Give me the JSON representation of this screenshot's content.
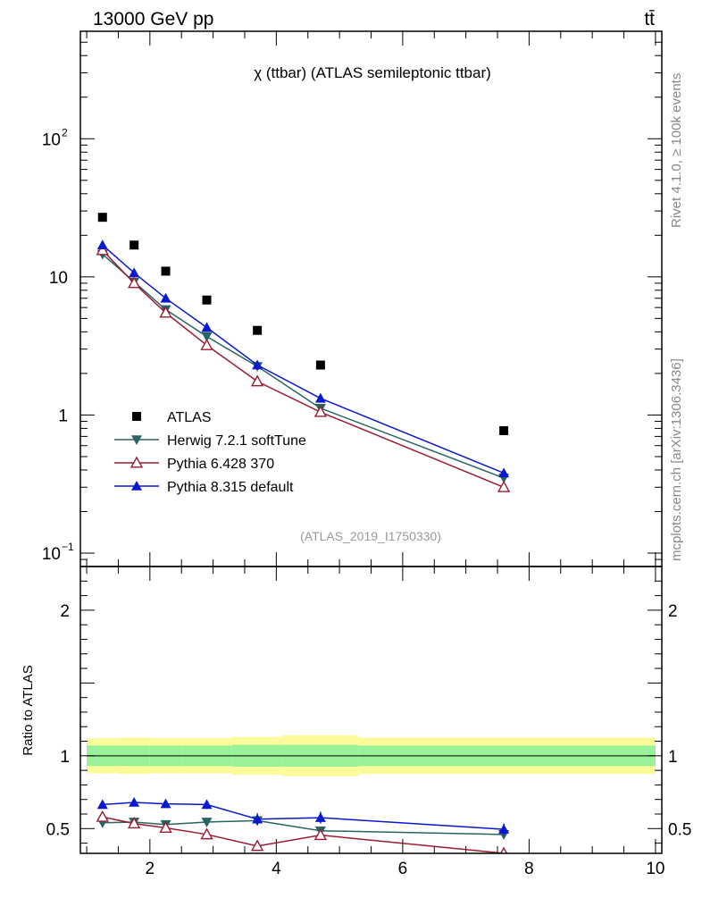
{
  "header": {
    "energy_label": "13000 GeV pp",
    "process_label": "tt̄",
    "rivet_label": "Rivet 4.1.0, ≥ 100k events",
    "mcplots_label": "mcplots.cern.ch [arXiv:1306.3436]"
  },
  "chart_data": [
    {
      "type": "scatter",
      "title": "χ (ttbar) (ATLAS semileptonic ttbar)",
      "analysis_id": "(ATLAS_2019_I1750330)",
      "yscale": "log",
      "xlim": [
        0.9,
        10.1
      ],
      "ylim": [
        0.08,
        600
      ],
      "yticks": [
        {
          "value": 100,
          "base": "10",
          "exp": "2"
        },
        {
          "value": 10,
          "base": "10",
          "exp": ""
        },
        {
          "value": 1,
          "base": "1",
          "exp": ""
        },
        {
          "value": 0.1,
          "base": "10",
          "exp": "−1"
        }
      ],
      "x": [
        1.25,
        1.75,
        2.25,
        2.9,
        3.7,
        4.7,
        7.6
      ],
      "series": [
        {
          "name": "ATLAS",
          "marker": "square",
          "color": "#000000",
          "values": [
            27,
            17,
            11,
            6.8,
            4.1,
            2.3,
            0.77
          ]
        },
        {
          "name": "Herwig 7.2.1 softTune",
          "marker": "triangle-down",
          "color": "#2a6460",
          "values": [
            14.6,
            9.2,
            5.8,
            3.7,
            2.25,
            1.12,
            0.35
          ]
        },
        {
          "name": "Pythia 6.428 370",
          "marker": "triangle-open",
          "color": "#9b1b30",
          "values": [
            15.6,
            9.0,
            5.5,
            3.2,
            1.75,
            1.05,
            0.3
          ]
        },
        {
          "name": "Pythia 8.315 default",
          "marker": "triangle-up",
          "color": "#0a18d0",
          "values": [
            17.0,
            10.7,
            7.0,
            4.3,
            2.3,
            1.32,
            0.38
          ]
        }
      ]
    },
    {
      "type": "scatter",
      "ylabel": "Ratio to ATLAS",
      "xlim": [
        0.9,
        10.1
      ],
      "ylim": [
        0.33,
        2.3
      ],
      "xticks": [
        "2",
        "4",
        "6",
        "8",
        "10"
      ],
      "yticks": [
        "0.5",
        "1",
        "2"
      ],
      "band": {
        "edges": [
          1.0,
          1.5,
          2.0,
          2.5,
          3.3,
          4.1,
          5.3,
          10.0
        ],
        "green_half_widths": [
          0.07,
          0.07,
          0.07,
          0.07,
          0.075,
          0.075,
          0.07
        ],
        "yellow_half_widths": [
          0.12,
          0.125,
          0.12,
          0.12,
          0.13,
          0.14,
          0.125
        ],
        "green_color": "#99f299",
        "yellow_color": "#fbfb99"
      },
      "series": [
        {
          "name": "Herwig 7.2.1 softTune",
          "color": "#2a6460",
          "values": [
            0.54,
            0.545,
            0.528,
            0.545,
            0.555,
            0.485,
            0.46
          ],
          "errors": [
            0.012,
            0.015,
            0.015,
            0.02,
            0.025,
            0.02,
            0.03
          ]
        },
        {
          "name": "Pythia 6.428 370",
          "color": "#9b1b30",
          "values": [
            0.58,
            0.535,
            0.505,
            0.46,
            0.38,
            0.455,
            0.33
          ],
          "errors": [
            0.012,
            0.015,
            0.015,
            0.02,
            0.025,
            0.03,
            0.03
          ]
        },
        {
          "name": "Pythia 8.315 default",
          "color": "#0a18d0",
          "values": [
            0.665,
            0.68,
            0.67,
            0.665,
            0.565,
            0.575,
            0.495
          ],
          "errors": [
            0.012,
            0.025,
            0.025,
            0.03,
            0.04,
            0.04,
            0.04
          ]
        }
      ]
    }
  ]
}
